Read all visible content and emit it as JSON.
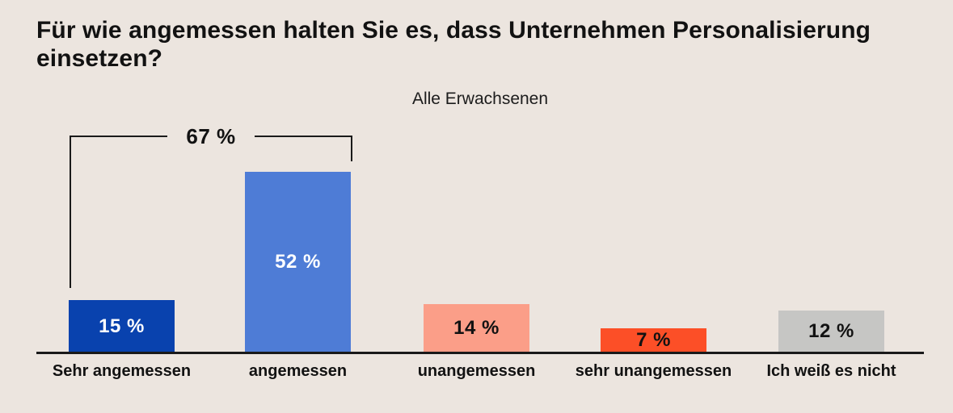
{
  "header": {
    "title_lines": [
      "Für wie angemessen halten Sie es, dass Unternehmen Personalisierung",
      "einsetzen?"
    ],
    "subtitle": "Alle Erwachsenen"
  },
  "chart_data": {
    "type": "bar",
    "title": "Für wie angemessen halten Sie es, dass Unternehmen Personalisierung einsetzen?",
    "subtitle": "Alle Erwachsenen",
    "categories": [
      "Sehr angemessen",
      "angemessen",
      "unangemessen",
      "sehr unangemessen",
      "Ich weiß es nicht"
    ],
    "values": [
      15,
      52,
      14,
      7,
      12
    ],
    "value_labels": [
      "15 %",
      "52 %",
      "14 %",
      "7 %",
      "12 %"
    ],
    "bar_colors": [
      "#0942ae",
      "#4e7cd6",
      "#fb9e88",
      "#fc4f27",
      "#c6c6c4"
    ],
    "value_label_colors": [
      "#ffffff",
      "#ffffff",
      "#121212",
      "#121212",
      "#121212"
    ],
    "annotation": {
      "label": "67 %",
      "value": 67,
      "spans_categories": [
        "Sehr angemessen",
        "angemessen"
      ]
    },
    "ylim": [
      0,
      52
    ],
    "xlabel": "",
    "ylabel": "",
    "grid": false,
    "legend": false
  },
  "colors": {
    "background": "#ece5df",
    "axis": "#1a1a1a",
    "text": "#121212"
  }
}
